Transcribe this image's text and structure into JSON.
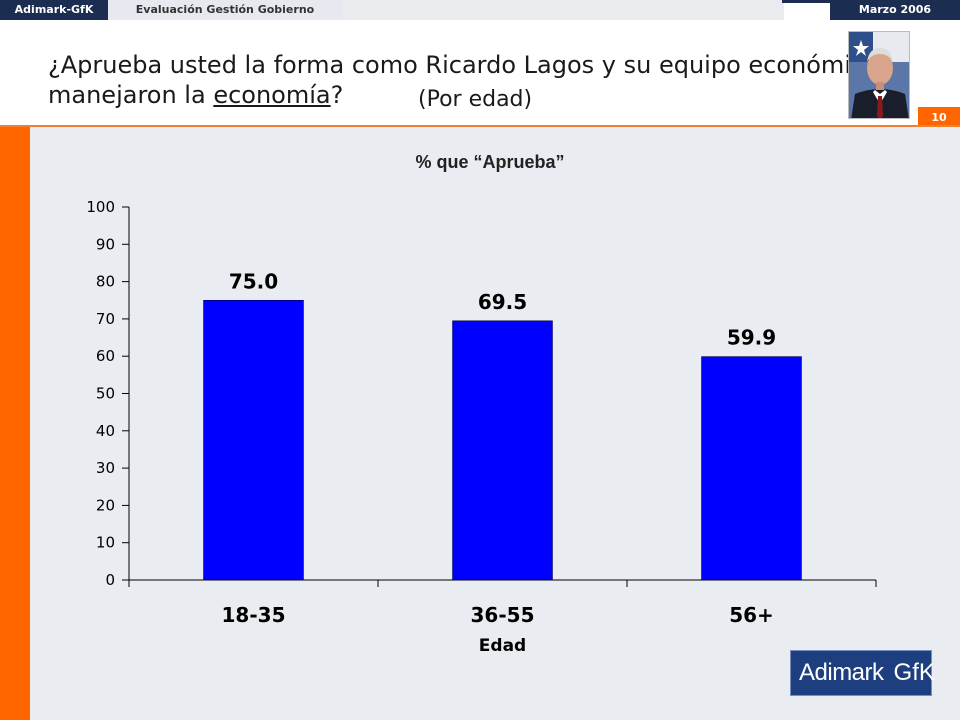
{
  "header": {
    "brand": "Adimark-GfK",
    "section": "Evaluación Gestión Gobierno",
    "date": "Marzo 2006",
    "page_number": "10",
    "colors": {
      "navy": "#1c2d52",
      "orange": "#ff6600"
    }
  },
  "title": {
    "line1": "¿Aprueba usted la forma como Ricardo Lagos y su equipo económico",
    "line2_prefix": "manejaron la ",
    "line2_underlined": "economía",
    "line2_suffix": "?",
    "subtitle": "(Por edad)"
  },
  "photo": {
    "icon": "portrait-photo"
  },
  "chart_data": {
    "type": "bar",
    "title": "% que “Aprueba”",
    "xlabel": "Edad",
    "ylabel": "",
    "categories": [
      "18-35",
      "36-55",
      "56+"
    ],
    "values": [
      75.0,
      69.5,
      59.9
    ],
    "value_labels": [
      "75.0",
      "69.5",
      "59.9"
    ],
    "ylim": [
      0,
      100
    ],
    "yticks": [
      0,
      10,
      20,
      30,
      40,
      50,
      60,
      70,
      80,
      90,
      100
    ],
    "grid": false,
    "legend": "none",
    "bar_color": "#0000ff"
  },
  "logo": {
    "left": "Adimark",
    "right": "GfK"
  }
}
